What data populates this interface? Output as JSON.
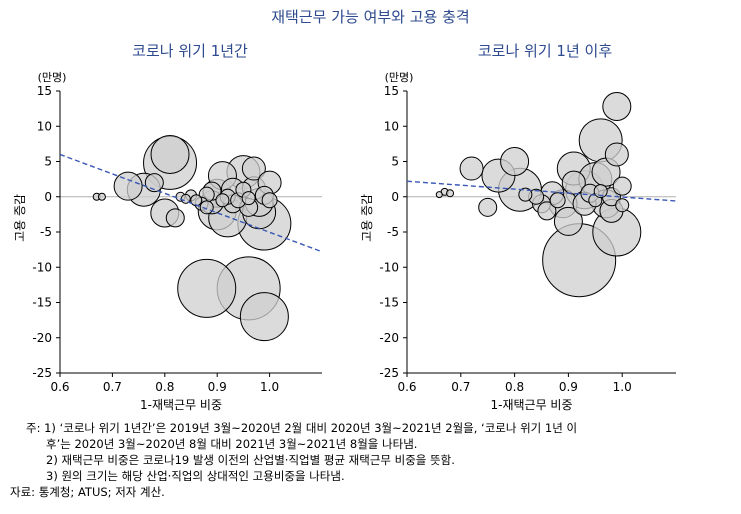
{
  "figure_title": "재택근무 가능 여부와 고용 충격",
  "notes": {
    "n1_prefix": "주: 1)",
    "n1_a": "‘코로나 위기 1년간’은 2019년 3월~2020년 2월 대비 2020년 3월~2021년 2월을, ‘코로나 위기 1년 이",
    "n1_b": "후’는 2020년 3월~2020년 8월 대비 2021년 3월~2021년 8월을 나타냄.",
    "n2": "2) 재택근무 비중은 코로나19 발생 이전의 산업별·직업별 평균 재택근무 비중을 뜻함.",
    "n3": "3) 원의 크기는 해당 산업·직업의 상대적인 고용비중을 나타냄.",
    "source": "자료: 통계청; ATUS; 저자 계산."
  },
  "chart_data": [
    {
      "type": "scatter",
      "title": "코로나 위기 1년간",
      "xlabel": "1-재택근무 비중",
      "ylabel": "고용 증감",
      "yunit": "(만명)",
      "xlim": [
        0.6,
        1.1
      ],
      "ylim": [
        -25,
        15
      ],
      "xticks": [
        "0.6",
        "0.7",
        "0.8",
        "0.9",
        "1.0"
      ],
      "yticks": [
        "15",
        "10",
        "5",
        "0",
        "-5",
        "-10",
        "-15",
        "-20",
        "-25"
      ],
      "trendline": {
        "x": [
          0.6,
          1.1
        ],
        "y": [
          6.0,
          -7.8
        ]
      },
      "points": [
        {
          "x": 0.67,
          "y": 0.0,
          "size": 0.4
        },
        {
          "x": 0.68,
          "y": 0.0,
          "size": 0.4
        },
        {
          "x": 0.73,
          "y": 1.5,
          "size": 2.5
        },
        {
          "x": 0.76,
          "y": 1.0,
          "size": 3.0
        },
        {
          "x": 0.78,
          "y": 2.0,
          "size": 1.5
        },
        {
          "x": 0.8,
          "y": -2.3,
          "size": 2.5
        },
        {
          "x": 0.81,
          "y": 4.8,
          "size": 5.0
        },
        {
          "x": 0.81,
          "y": 6.0,
          "size": 3.5
        },
        {
          "x": 0.82,
          "y": -3.0,
          "size": 1.5
        },
        {
          "x": 0.83,
          "y": 0.0,
          "size": 0.6
        },
        {
          "x": 0.84,
          "y": -0.3,
          "size": 0.6
        },
        {
          "x": 0.85,
          "y": 0.2,
          "size": 0.8
        },
        {
          "x": 0.86,
          "y": -0.5,
          "size": 0.8
        },
        {
          "x": 0.87,
          "y": -1.0,
          "size": 1.0
        },
        {
          "x": 0.88,
          "y": 0.3,
          "size": 1.2
        },
        {
          "x": 0.88,
          "y": -1.5,
          "size": 1.0
        },
        {
          "x": 0.89,
          "y": 0.8,
          "size": 1.5
        },
        {
          "x": 0.89,
          "y": -0.8,
          "size": 2.0
        },
        {
          "x": 0.9,
          "y": 0.5,
          "size": 2.5
        },
        {
          "x": 0.9,
          "y": -2.0,
          "size": 3.5
        },
        {
          "x": 0.91,
          "y": 3.0,
          "size": 2.5
        },
        {
          "x": 0.91,
          "y": -0.5,
          "size": 1.0
        },
        {
          "x": 0.92,
          "y": 0.0,
          "size": 1.2
        },
        {
          "x": 0.92,
          "y": -3.0,
          "size": 3.5
        },
        {
          "x": 0.93,
          "y": 1.0,
          "size": 2.0
        },
        {
          "x": 0.93,
          "y": -1.0,
          "size": 1.5
        },
        {
          "x": 0.94,
          "y": -0.5,
          "size": 1.2
        },
        {
          "x": 0.95,
          "y": 3.5,
          "size": 3.0
        },
        {
          "x": 0.95,
          "y": 1.0,
          "size": 1.2
        },
        {
          "x": 0.96,
          "y": -0.2,
          "size": 1.0
        },
        {
          "x": 0.96,
          "y": -1.5,
          "size": 1.5
        },
        {
          "x": 0.97,
          "y": 1.2,
          "size": 2.0
        },
        {
          "x": 0.97,
          "y": 4.0,
          "size": 2.0
        },
        {
          "x": 0.98,
          "y": -0.8,
          "size": 2.5
        },
        {
          "x": 0.98,
          "y": -2.2,
          "size": 3.0
        },
        {
          "x": 0.99,
          "y": 0.2,
          "size": 1.5
        },
        {
          "x": 0.99,
          "y": -3.8,
          "size": 5.0
        },
        {
          "x": 1.0,
          "y": 2.0,
          "size": 2.0
        },
        {
          "x": 1.0,
          "y": -0.5,
          "size": 1.2
        },
        {
          "x": 0.88,
          "y": -13.0,
          "size": 5.5
        },
        {
          "x": 0.96,
          "y": -13.0,
          "size": 6.0
        },
        {
          "x": 0.99,
          "y": -17.0,
          "size": 4.5
        }
      ]
    },
    {
      "type": "scatter",
      "title": "코로나 위기 1년 이후",
      "xlabel": "1-재택근무 비중",
      "ylabel": "고용 증감",
      "yunit": "(만명)",
      "xlim": [
        0.6,
        1.1
      ],
      "ylim": [
        -25,
        15
      ],
      "xticks": [
        "0.6",
        "0.7",
        "0.8",
        "0.9",
        "1.0"
      ],
      "yticks": [
        "15",
        "10",
        "5",
        "0",
        "-5",
        "-10",
        "-15",
        "-20",
        "-25"
      ],
      "trendline": {
        "x": [
          0.6,
          1.1
        ],
        "y": [
          2.2,
          -0.6
        ]
      },
      "points": [
        {
          "x": 0.66,
          "y": 0.3,
          "size": 0.3
        },
        {
          "x": 0.67,
          "y": 0.7,
          "size": 0.4
        },
        {
          "x": 0.68,
          "y": 0.5,
          "size": 0.4
        },
        {
          "x": 0.72,
          "y": 4.0,
          "size": 2.0
        },
        {
          "x": 0.75,
          "y": -1.5,
          "size": 1.5
        },
        {
          "x": 0.77,
          "y": 3.0,
          "size": 3.0
        },
        {
          "x": 0.8,
          "y": 5.0,
          "size": 2.5
        },
        {
          "x": 0.81,
          "y": 1.0,
          "size": 4.0
        },
        {
          "x": 0.82,
          "y": 0.3,
          "size": 1.0
        },
        {
          "x": 0.84,
          "y": 0.0,
          "size": 1.2
        },
        {
          "x": 0.85,
          "y": -1.0,
          "size": 1.5
        },
        {
          "x": 0.86,
          "y": -2.0,
          "size": 1.5
        },
        {
          "x": 0.87,
          "y": 0.5,
          "size": 2.0
        },
        {
          "x": 0.88,
          "y": -0.5,
          "size": 1.2
        },
        {
          "x": 0.89,
          "y": -1.0,
          "size": 2.5
        },
        {
          "x": 0.9,
          "y": -3.5,
          "size": 2.5
        },
        {
          "x": 0.91,
          "y": 4.0,
          "size": 3.0
        },
        {
          "x": 0.91,
          "y": 2.0,
          "size": 2.0
        },
        {
          "x": 0.92,
          "y": -9.0,
          "size": 7.0
        },
        {
          "x": 0.93,
          "y": 1.0,
          "size": 3.5
        },
        {
          "x": 0.93,
          "y": -1.0,
          "size": 2.0
        },
        {
          "x": 0.94,
          "y": 0.5,
          "size": 1.5
        },
        {
          "x": 0.95,
          "y": 2.5,
          "size": 3.0
        },
        {
          "x": 0.95,
          "y": -0.5,
          "size": 1.0
        },
        {
          "x": 0.96,
          "y": 8.0,
          "size": 4.0
        },
        {
          "x": 0.96,
          "y": 0.8,
          "size": 1.0
        },
        {
          "x": 0.97,
          "y": 3.5,
          "size": 2.5
        },
        {
          "x": 0.97,
          "y": -1.0,
          "size": 2.5
        },
        {
          "x": 0.98,
          "y": 0.0,
          "size": 1.5
        },
        {
          "x": 0.98,
          "y": -2.0,
          "size": 2.0
        },
        {
          "x": 0.99,
          "y": 6.0,
          "size": 2.0
        },
        {
          "x": 0.99,
          "y": -5.0,
          "size": 4.5
        },
        {
          "x": 1.0,
          "y": 1.5,
          "size": 1.5
        },
        {
          "x": 1.0,
          "y": -1.2,
          "size": 1.0
        },
        {
          "x": 0.99,
          "y": 12.8,
          "size": 2.5
        }
      ]
    }
  ]
}
